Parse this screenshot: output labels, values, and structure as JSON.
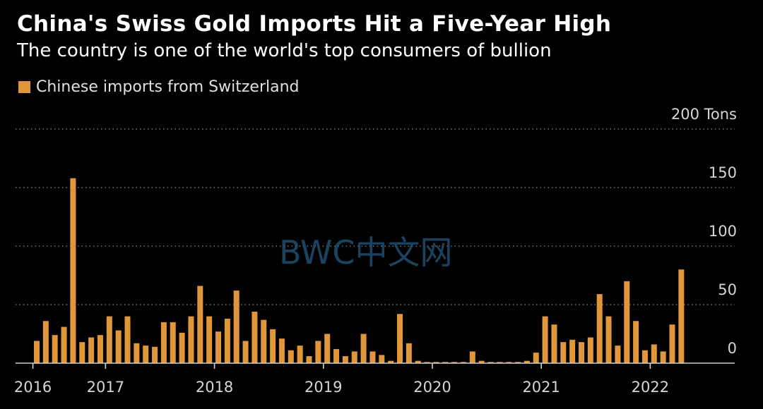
{
  "chart_data": {
    "type": "bar",
    "title": "China's Swiss Gold Imports Hit a Five-Year High",
    "subtitle": "The country is one of the world's top consumers of bullion",
    "legend": "Chinese imports from Switzerland",
    "unit_label": "200 Tons",
    "ylim": [
      0,
      200
    ],
    "yticks": [
      0,
      50,
      100,
      150,
      200
    ],
    "x_tick_labels": [
      "2016",
      "2017",
      "2018",
      "2019",
      "2020",
      "2021",
      "2022"
    ],
    "x_tick_start_index": [
      0,
      8,
      20,
      32,
      44,
      56,
      68
    ],
    "bar_color": "#e0963a",
    "grid": true,
    "series": [
      {
        "name": "Chinese imports from Switzerland",
        "values": [
          19,
          36,
          24,
          31,
          158,
          18,
          22,
          24,
          40,
          28,
          40,
          17,
          15,
          14,
          35,
          35,
          26,
          40,
          66,
          40,
          27,
          38,
          62,
          19,
          44,
          37,
          29,
          21,
          11,
          15,
          6,
          19,
          25,
          12,
          6,
          10,
          25,
          10,
          7,
          2,
          42,
          17,
          2,
          1,
          1,
          1,
          1,
          1,
          10,
          2,
          1,
          1,
          1,
          1,
          2,
          9,
          40,
          33,
          18,
          20,
          18,
          22,
          59,
          40,
          15,
          70,
          36,
          11,
          16,
          10,
          33,
          80
        ]
      }
    ]
  },
  "watermark": "BWC中文网"
}
